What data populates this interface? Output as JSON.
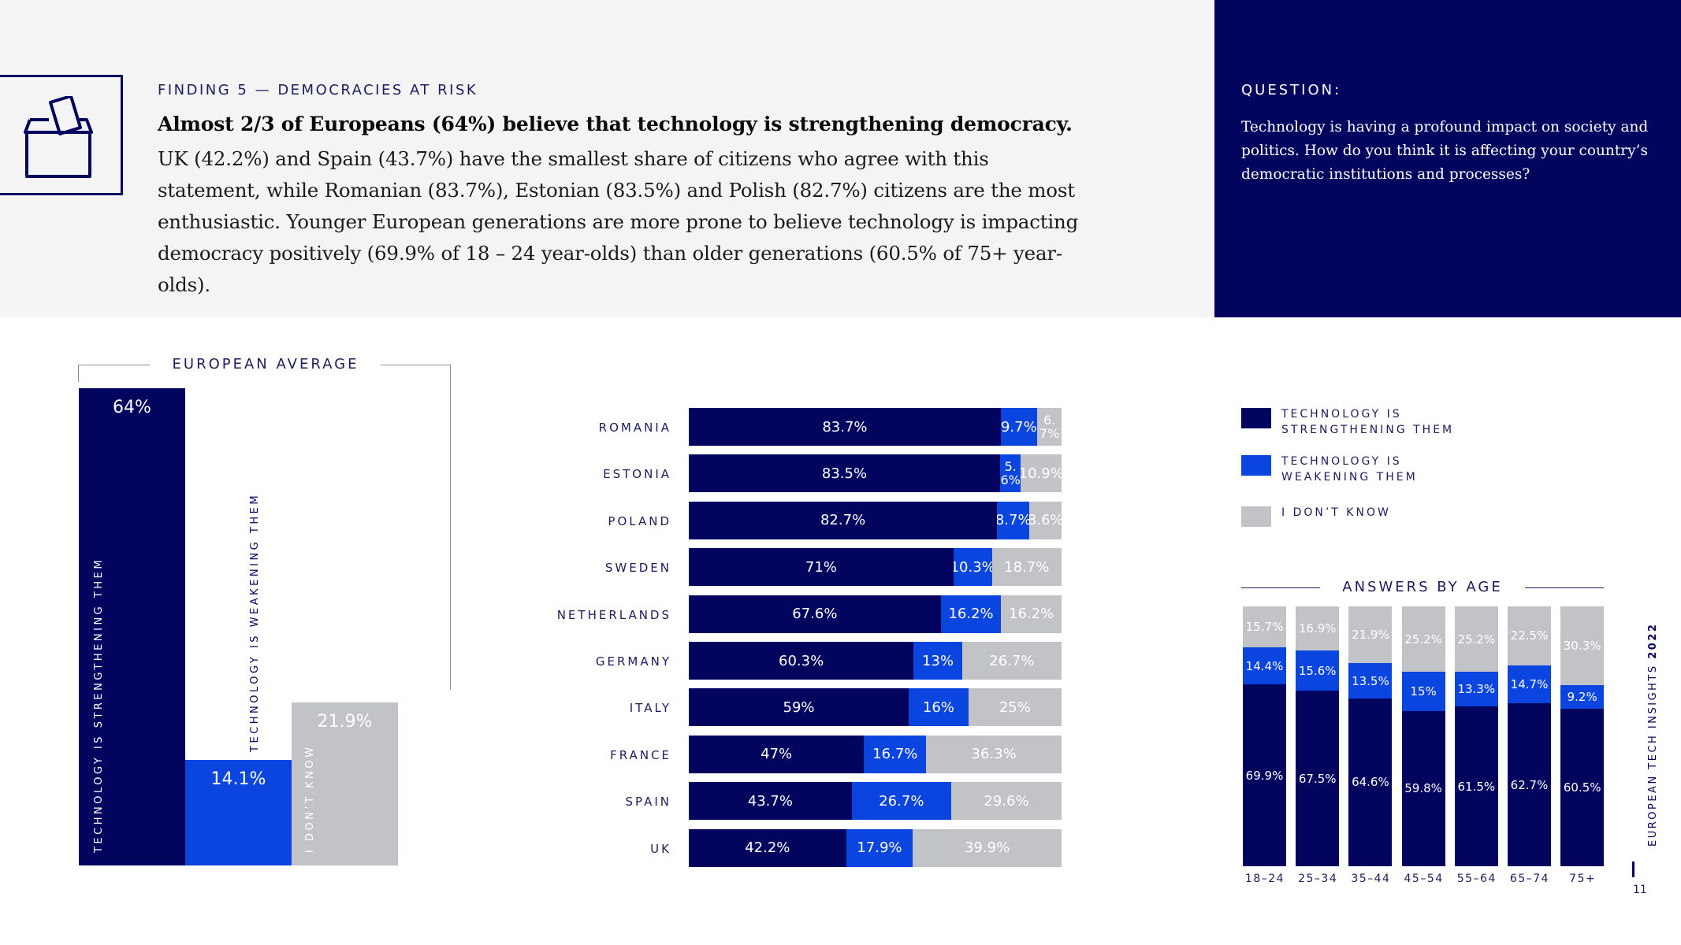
{
  "header": {
    "finding_label": "FINDING 5 — DEMOCRACIES AT RISK",
    "headline": "Almost 2/3 of Europeans (64%) believe that technology is strengthening democracy.",
    "summary": "UK (42.2%) and Spain (43.7%) have the smallest share of citizens who agree with this statement, while Romanian (83.7%), Estonian (83.5%) and Polish (82.7%) citizens are the most enthusiastic. Younger European generations are more prone to believe technology is impacting democracy positively (69.9% of 18 – 24 year-olds) than older generations (60.5% of 75+ year-olds).",
    "icon": "ballot-box-icon"
  },
  "question": {
    "label": "QUESTION:",
    "text": "Technology is having a profound impact on society and politics. How do you think it is affecting your country’s democratic institutions and processes?"
  },
  "legend": {
    "items": [
      {
        "label": "TECHNOLOGY IS STRENGTHENING THEM",
        "color": "#03045e"
      },
      {
        "label": "TECHNOLOGY IS WEAKENING THEM",
        "color": "#0a45e0"
      },
      {
        "label": "I DON’T KNOW",
        "color": "#c2c3c7"
      }
    ]
  },
  "colors": {
    "strengthening": "#03045e",
    "weakening": "#0a45e0",
    "dont_know": "#c2c3c7"
  },
  "chart_data": [
    {
      "type": "bar",
      "title": "EUROPEAN AVERAGE",
      "categories": [
        "TECHNOLOGY IS STRENGTHENING THEM",
        "TECHNOLOGY IS WEAKENING THEM",
        "I DON’T KNOW"
      ],
      "values": [
        64,
        14.1,
        21.9
      ],
      "labels": [
        "64%",
        "14.1%",
        "21.9%"
      ],
      "ylim": [
        0,
        64
      ]
    },
    {
      "type": "bar",
      "orientation": "horizontal",
      "stacked": true,
      "categories": [
        "ROMANIA",
        "ESTONIA",
        "POLAND",
        "SWEDEN",
        "NETHERLANDS",
        "GERMANY",
        "ITALY",
        "FRANCE",
        "SPAIN",
        "UK"
      ],
      "series": [
        {
          "values": [
            83.7,
            83.5,
            82.7,
            71,
            67.6,
            60.3,
            59,
            47,
            43.7,
            42.2
          ],
          "labels": [
            "83.7%",
            "83.5%",
            "82.7%",
            "71%",
            "67.6%",
            "60.3%",
            "59%",
            "47%",
            "43.7%",
            "42.2%"
          ]
        },
        {
          "values": [
            9.7,
            5.6,
            8.7,
            10.3,
            16.2,
            13,
            16,
            16.7,
            26.7,
            17.9
          ],
          "labels": [
            "9.7%",
            "5.6%",
            "8.7%",
            "10.3%",
            "16.2%",
            "13%",
            "16%",
            "16.7%",
            "26.7%",
            "17.9%"
          ]
        },
        {
          "values": [
            6.7,
            10.9,
            8.6,
            18.7,
            16.2,
            26.7,
            25,
            36.3,
            29.6,
            39.9
          ],
          "labels": [
            "6.7%",
            "10.9%",
            "8.6%",
            "18.7%",
            "16.2%",
            "26.7%",
            "25%",
            "36.3%",
            "29.6%",
            "39.9%"
          ]
        }
      ],
      "xlim": [
        0,
        100
      ]
    },
    {
      "type": "bar",
      "stacked": true,
      "title": "ANSWERS BY AGE",
      "categories": [
        "18–24",
        "25–34",
        "35–44",
        "45–54",
        "55–64",
        "65–74",
        "75+"
      ],
      "series": [
        {
          "values": [
            69.9,
            67.5,
            64.6,
            59.8,
            61.5,
            62.7,
            60.5
          ],
          "labels": [
            "69.9%",
            "67.5%",
            "64.6%",
            "59.8%",
            "61.5%",
            "62.7%",
            "60.5%"
          ]
        },
        {
          "values": [
            14.4,
            15.6,
            13.5,
            15,
            13.3,
            14.7,
            9.2
          ],
          "labels": [
            "14.4%",
            "15.6%",
            "13.5%",
            "15%",
            "13.3%",
            "14.7%",
            "9.2%"
          ]
        },
        {
          "values": [
            15.7,
            16.9,
            21.9,
            25.2,
            25.2,
            22.5,
            30.3
          ],
          "labels": [
            "15.7%",
            "16.9%",
            "21.9%",
            "25.2%",
            "25.2%",
            "22.5%",
            "30.3%"
          ]
        }
      ],
      "ylim": [
        0,
        100
      ]
    }
  ],
  "footer": {
    "side_title": "EUROPEAN TECH INSIGHTS",
    "side_year": "2022",
    "page_number": "11"
  }
}
